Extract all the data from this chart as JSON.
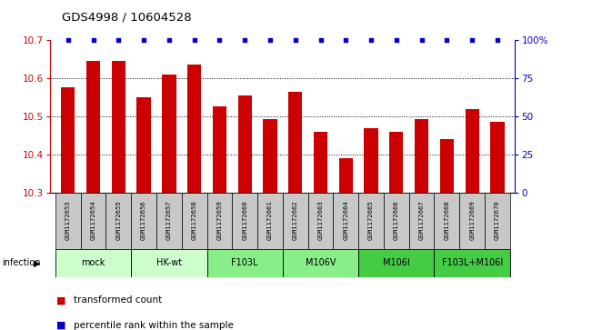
{
  "title": "GDS4998 / 10604528",
  "samples": [
    "GSM1172653",
    "GSM1172654",
    "GSM1172655",
    "GSM1172656",
    "GSM1172657",
    "GSM1172658",
    "GSM1172659",
    "GSM1172660",
    "GSM1172661",
    "GSM1172662",
    "GSM1172663",
    "GSM1172664",
    "GSM1172665",
    "GSM1172666",
    "GSM1172667",
    "GSM1172668",
    "GSM1172669",
    "GSM1172670"
  ],
  "bar_values": [
    10.575,
    10.645,
    10.645,
    10.55,
    10.61,
    10.635,
    10.525,
    10.555,
    10.493,
    10.565,
    10.46,
    10.39,
    10.47,
    10.46,
    10.493,
    10.44,
    10.52,
    10.485
  ],
  "percentile_values": [
    100,
    100,
    100,
    100,
    100,
    100,
    100,
    100,
    100,
    100,
    100,
    100,
    100,
    100,
    100,
    100,
    100,
    100
  ],
  "ylim_left": [
    10.3,
    10.7
  ],
  "ylim_right": [
    0,
    100
  ],
  "yticks_left": [
    10.3,
    10.4,
    10.5,
    10.6,
    10.7
  ],
  "yticks_right": [
    0,
    25,
    50,
    75,
    100
  ],
  "ytick_labels_right": [
    "0",
    "25",
    "50",
    "75",
    "100%"
  ],
  "bar_color": "#cc0000",
  "dot_color": "#0000cc",
  "groups": [
    {
      "label": "mock",
      "start": 0,
      "end": 2,
      "color": "#ccffcc"
    },
    {
      "label": "HK-wt",
      "start": 3,
      "end": 5,
      "color": "#ccffcc"
    },
    {
      "label": "F103L",
      "start": 6,
      "end": 8,
      "color": "#88ee88"
    },
    {
      "label": "M106V",
      "start": 9,
      "end": 11,
      "color": "#88ee88"
    },
    {
      "label": "M106I",
      "start": 12,
      "end": 14,
      "color": "#44cc44"
    },
    {
      "label": "F103L+M106I",
      "start": 15,
      "end": 17,
      "color": "#44cc44"
    }
  ],
  "sample_box_color": "#c8c8c8",
  "infection_label": "infection"
}
